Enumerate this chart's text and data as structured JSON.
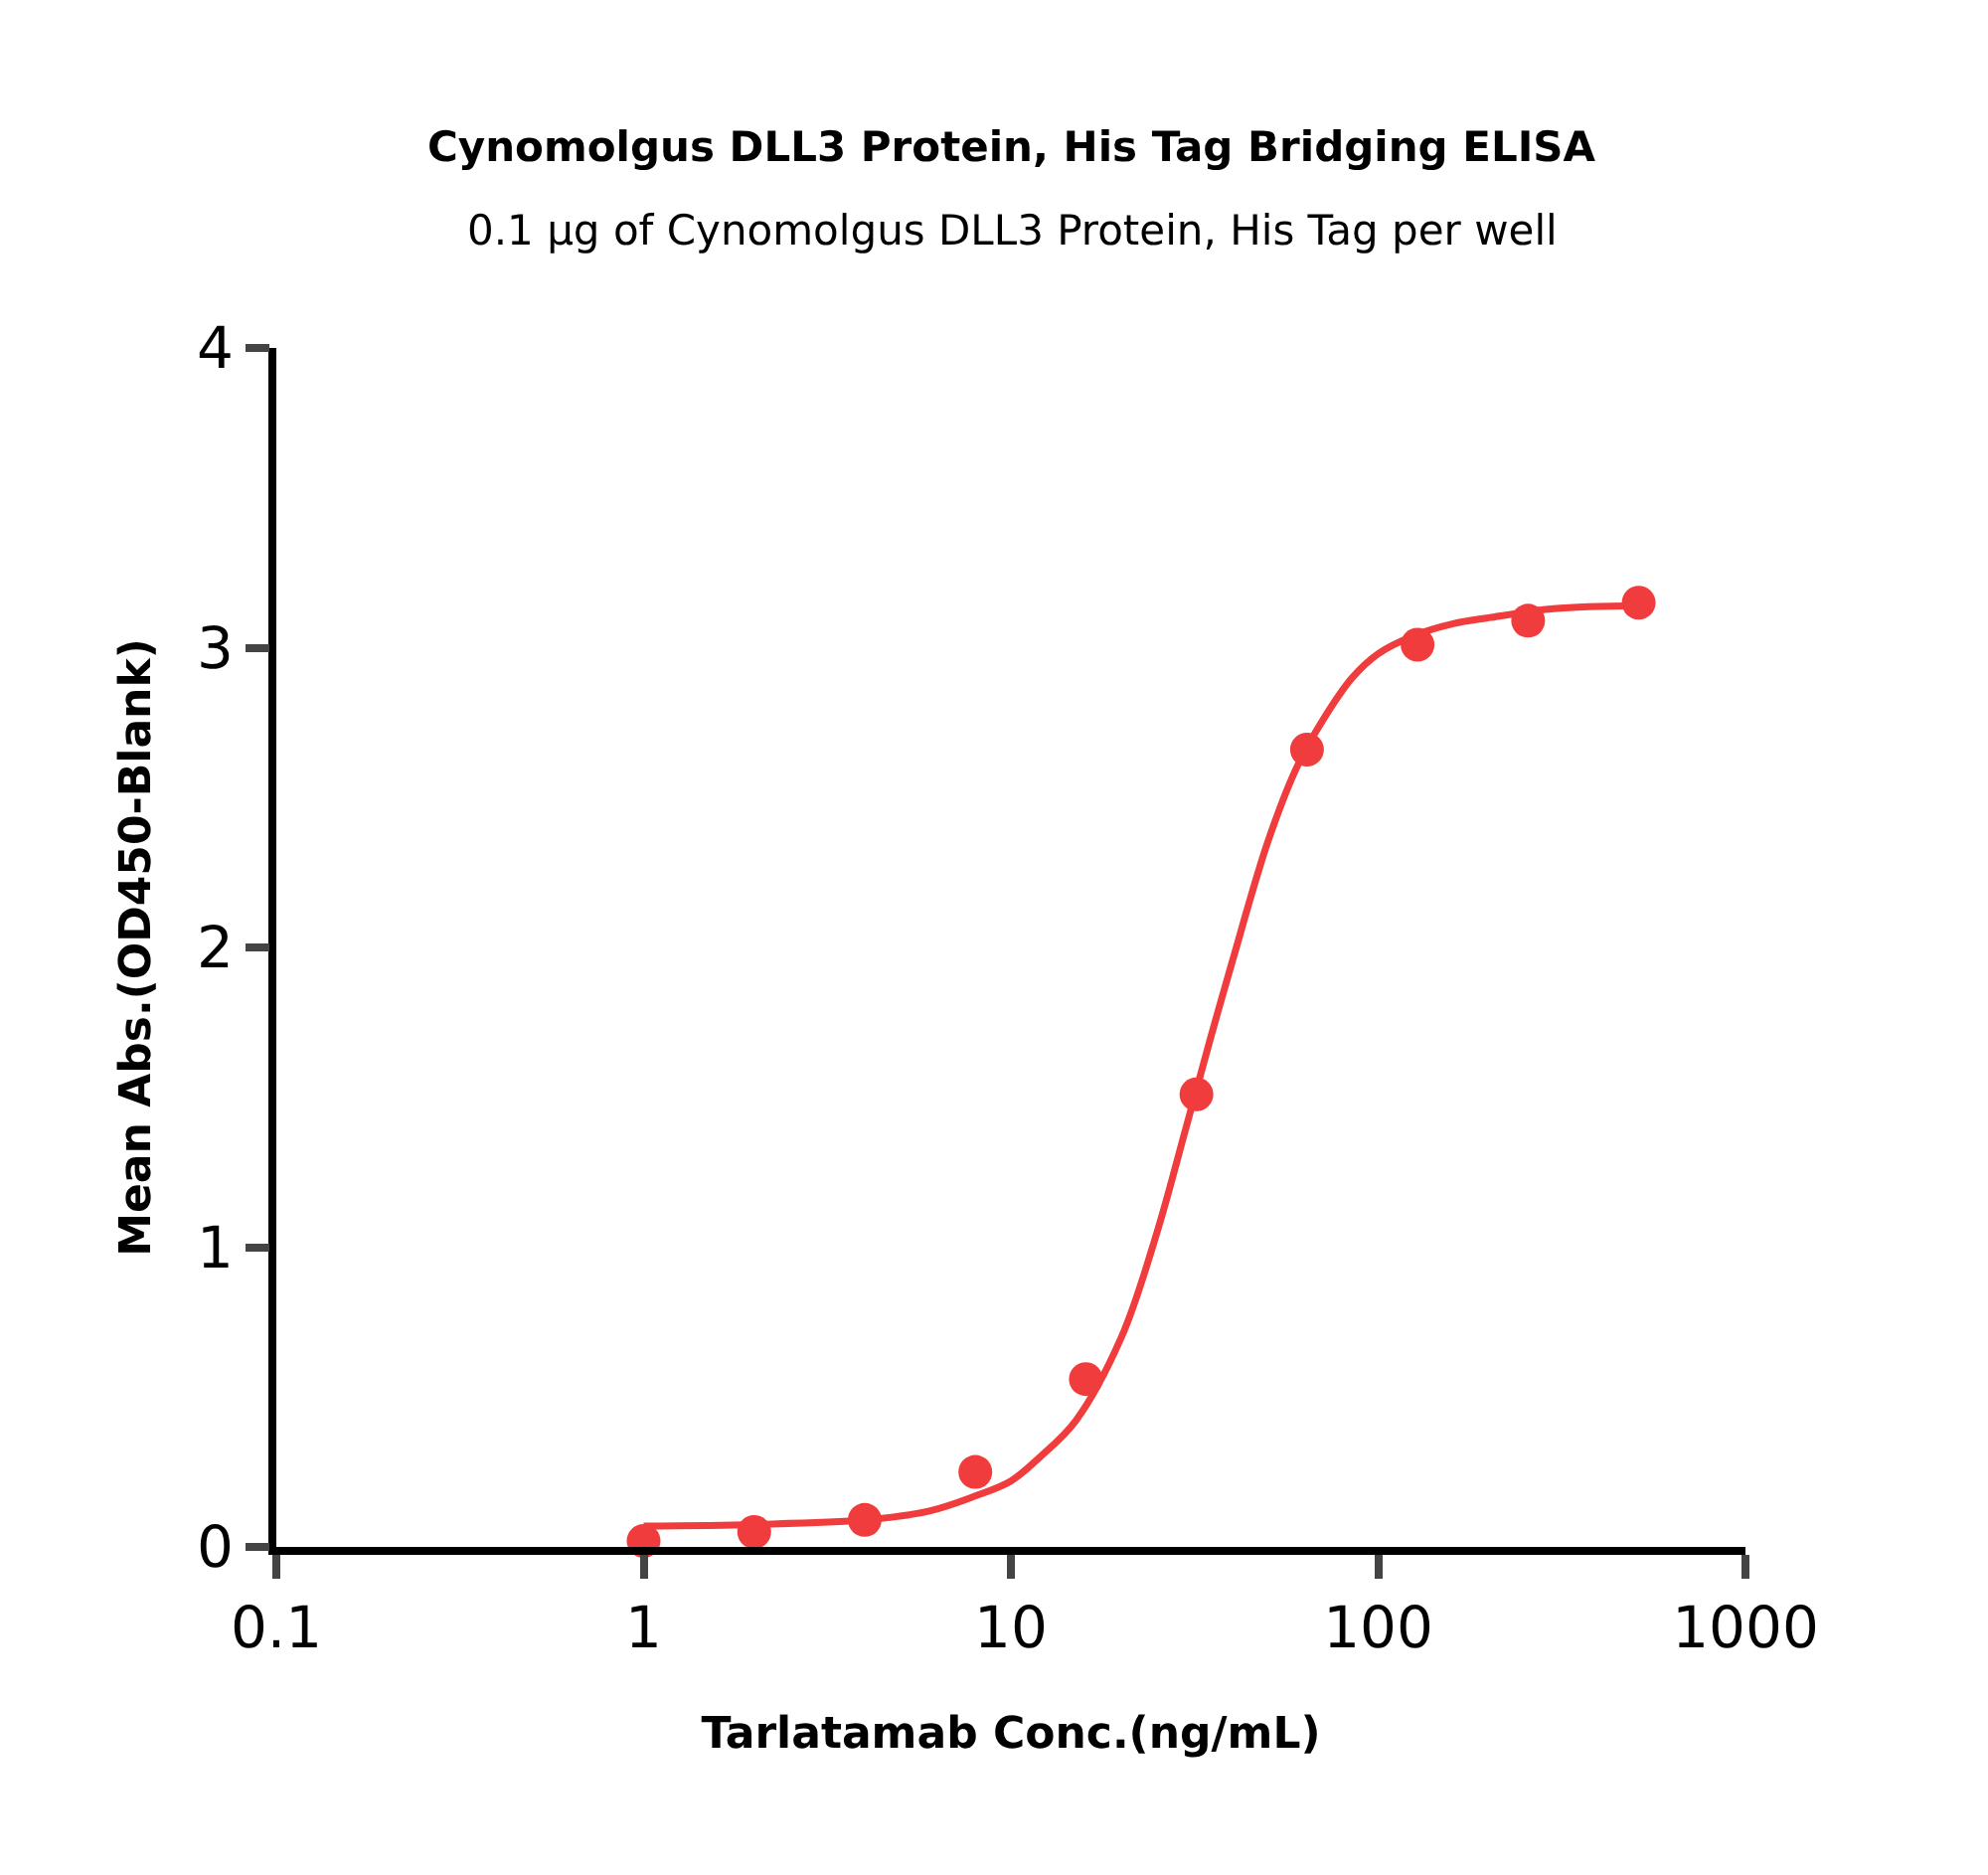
{
  "chart_data": {
    "type": "scatter",
    "title": "Cynomolgus DLL3 Protein, His Tag Bridging ELISA",
    "subtitle": "0.1 μg of Cynomolgus DLL3 Protein, His Tag per well",
    "xlabel": "Tarlatamab Conc.(ng/mL)",
    "ylabel": "Mean Abs.(OD450-Blank)",
    "log": "x",
    "xlim": [
      0.1,
      1000
    ],
    "xticks": [
      0.1,
      1,
      10,
      100,
      1000
    ],
    "ylim": [
      0,
      4
    ],
    "yticks": [
      0,
      1,
      2,
      3,
      4
    ],
    "series": [
      {
        "marker": "circle",
        "color": "#f03c3c",
        "x": [
          1,
          2,
          4,
          8,
          16,
          32,
          64,
          128,
          256,
          512
        ],
        "values": [
          0.02,
          0.05,
          0.09,
          0.25,
          0.56,
          1.51,
          2.66,
          3.01,
          3.09,
          3.15
        ]
      },
      {
        "type": "line",
        "marker": "none",
        "color": "#f03c3c",
        "line_style": "solid",
        "x": [
          1,
          2,
          4,
          6,
          8,
          10,
          12,
          15,
          20,
          25,
          30,
          35,
          40,
          50,
          60,
          70,
          85,
          100,
          125,
          160,
          200,
          300,
          512
        ],
        "values": [
          0.07,
          0.075,
          0.09,
          0.12,
          0.17,
          0.22,
          0.3,
          0.42,
          0.7,
          1.05,
          1.4,
          1.7,
          1.95,
          2.35,
          2.6,
          2.75,
          2.9,
          2.98,
          3.04,
          3.08,
          3.1,
          3.13,
          3.14
        ]
      }
    ]
  }
}
